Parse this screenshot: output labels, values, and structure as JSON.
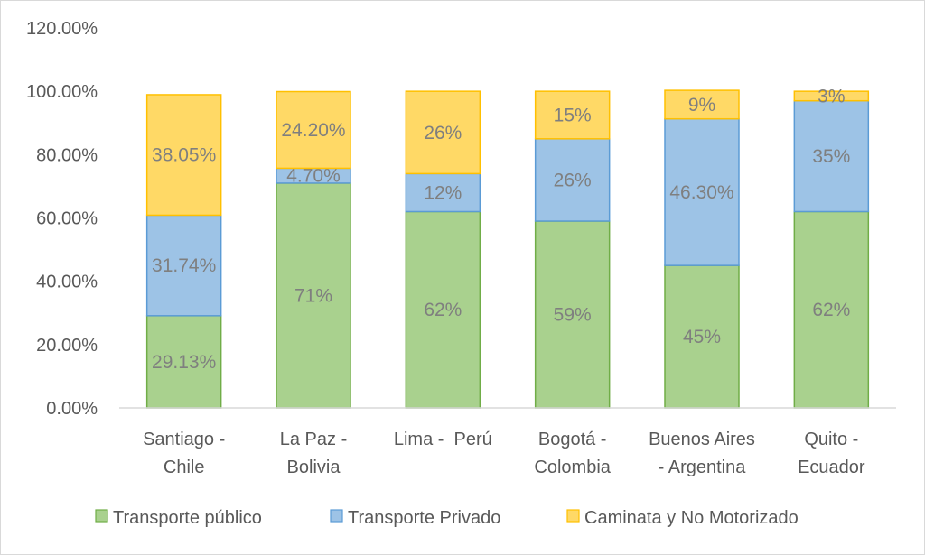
{
  "chart_data": {
    "type": "bar",
    "stacked": true,
    "title": "",
    "xlabel": "",
    "ylabel": "",
    "ylim": [
      0,
      120
    ],
    "yticks": [
      0,
      20,
      40,
      60,
      80,
      100,
      120
    ],
    "ytick_labels": [
      "0.00%",
      "20.00%",
      "40.00%",
      "60.00%",
      "80.00%",
      "100.00%",
      "120.00%"
    ],
    "categories": [
      [
        "Santiago -",
        "Chile"
      ],
      [
        "La Paz -",
        "Bolivia"
      ],
      [
        "Lima -  Perú"
      ],
      [
        "Bogotá -",
        "Colombia"
      ],
      [
        "Buenos Aires",
        "- Argentina"
      ],
      [
        "Quito -",
        "Ecuador"
      ]
    ],
    "series": [
      {
        "name": "Transporte público",
        "fill": "#a9d18e",
        "stroke": "#70ad47",
        "values": [
          29.13,
          71,
          62,
          59,
          45,
          62
        ],
        "labels": [
          "29.13%",
          "71%",
          "62%",
          "59%",
          "45%",
          "62%"
        ]
      },
      {
        "name": "Transporte Privado",
        "fill": "#9dc3e6",
        "stroke": "#5b9bd5",
        "values": [
          31.74,
          4.7,
          12,
          26,
          46.3,
          35
        ],
        "labels": [
          "31.74%",
          "4.70%",
          "12%",
          "26%",
          "46.30%",
          "35%"
        ]
      },
      {
        "name": "Caminata y No Motorizado",
        "fill": "#ffd966",
        "stroke": "#ffc000",
        "values": [
          38.05,
          24.2,
          26,
          15,
          9,
          3
        ],
        "labels": [
          "38.05%",
          "24.20%",
          "26%",
          "15%",
          "9%",
          "3%"
        ]
      }
    ],
    "legend": "bottom",
    "grid": false
  }
}
